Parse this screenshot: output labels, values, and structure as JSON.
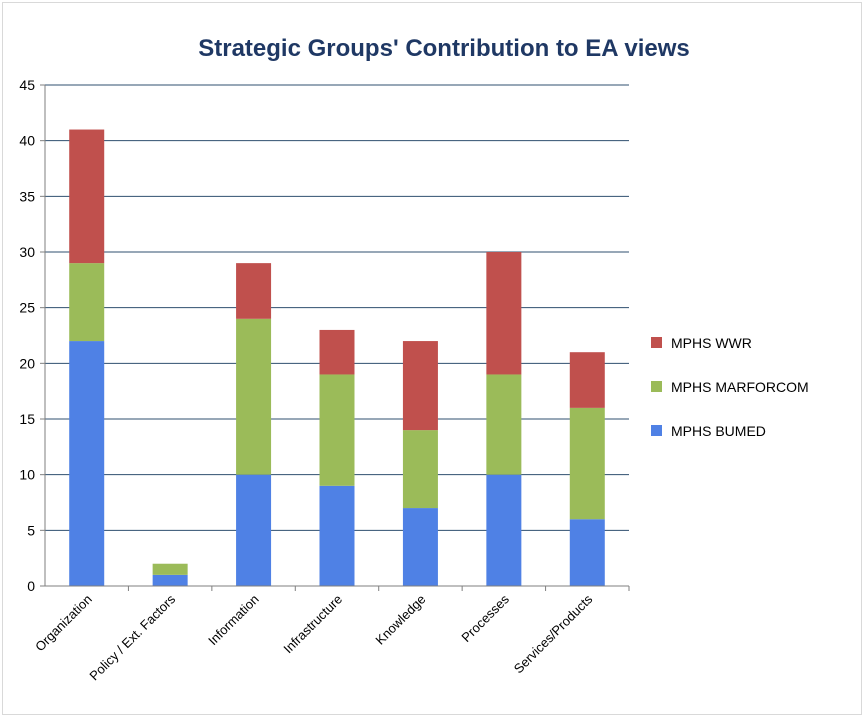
{
  "chart_data": {
    "type": "bar",
    "stacked": true,
    "title": "Strategic Groups' Contribution to EA views",
    "xlabel": "",
    "ylabel": "",
    "ylim": [
      0,
      45
    ],
    "yticks": [
      0,
      5,
      10,
      15,
      20,
      25,
      30,
      35,
      40,
      45
    ],
    "grid": true,
    "legend_position": "right",
    "categories": [
      "Organization",
      "Policy / Ext. Factors",
      "Information",
      "Infrastructure",
      "Knowledge",
      "Processes",
      "Services/Products"
    ],
    "series": [
      {
        "name": "MPHS BUMED",
        "color": "#4f81e5",
        "values": [
          22,
          1,
          10,
          9,
          7,
          10,
          6
        ]
      },
      {
        "name": "MPHS MARFORCOM",
        "color": "#9bbb59",
        "values": [
          7,
          1,
          14,
          10,
          7,
          9,
          10
        ]
      },
      {
        "name": "MPHS WWR",
        "color": "#c0504d",
        "values": [
          12,
          0,
          5,
          4,
          8,
          11,
          5
        ]
      }
    ]
  }
}
